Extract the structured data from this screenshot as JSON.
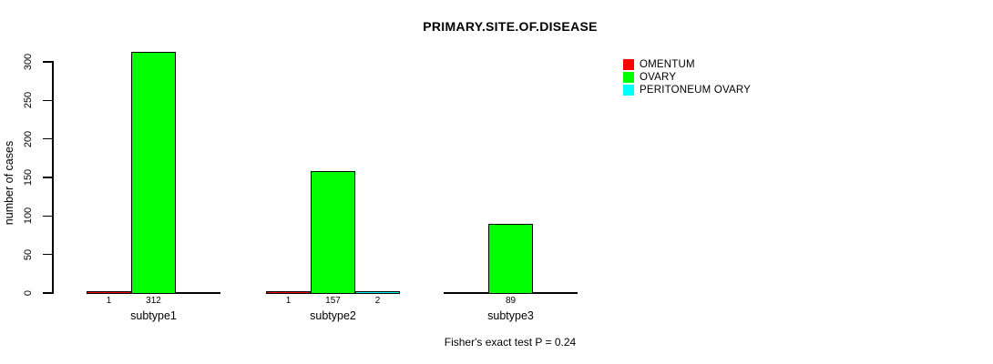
{
  "chart_data": {
    "type": "bar",
    "title": "PRIMARY.SITE.OF.DISEASE",
    "ylabel": "number of cases",
    "xlabel": "",
    "footer": "Fisher's exact test P = 0.24",
    "ylim": [
      0,
      300
    ],
    "yticks": [
      0,
      50,
      100,
      150,
      200,
      250,
      300
    ],
    "grid": false,
    "legend_position": "top-right",
    "categories": [
      "subtype1",
      "subtype2",
      "subtype3"
    ],
    "series": [
      {
        "name": "OMENTUM",
        "color": "#ff0000",
        "values": [
          1,
          1,
          0
        ]
      },
      {
        "name": "OVARY",
        "color": "#00ff00",
        "values": [
          312,
          157,
          89
        ]
      },
      {
        "name": "PERITONEUM OVARY",
        "color": "#00ffff",
        "values": [
          0,
          2,
          0
        ]
      }
    ],
    "value_label_rule": "count shown under axis for each nonzero bar",
    "axis_color": "#000000",
    "background_color": "#ffffff"
  }
}
